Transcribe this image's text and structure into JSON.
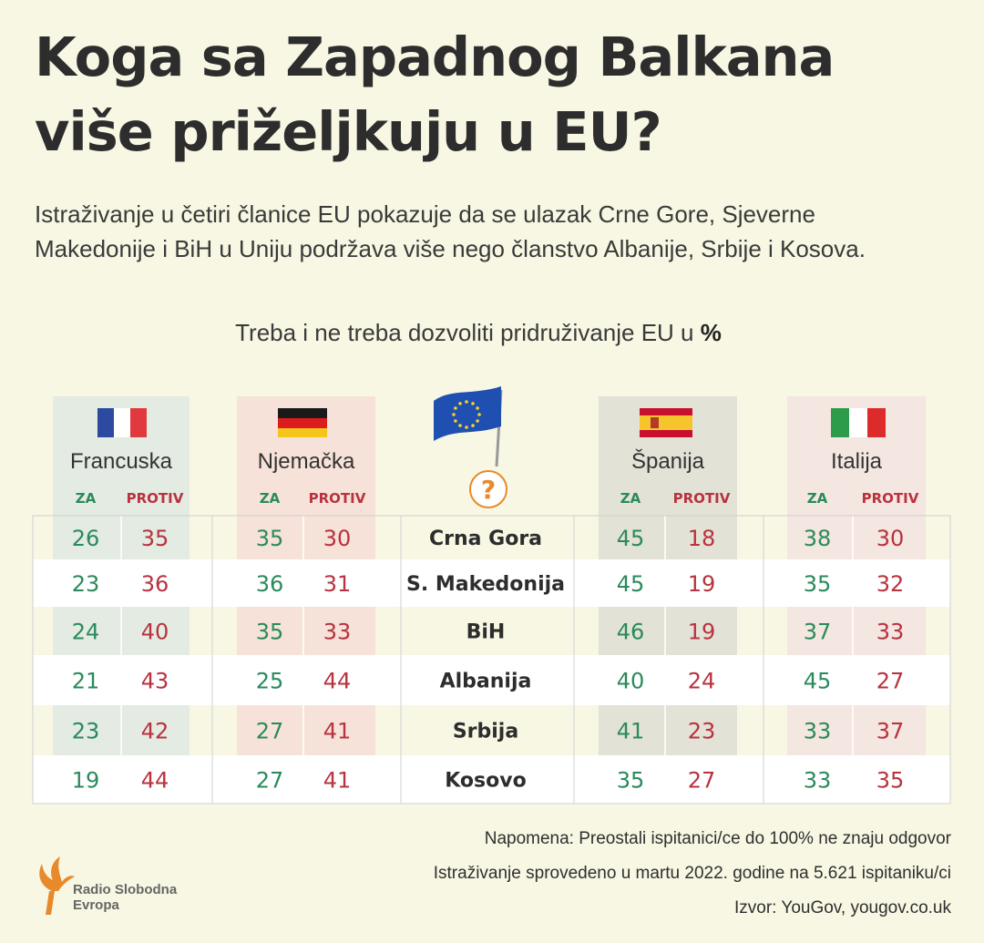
{
  "title": {
    "line1": "Koga sa Zapadnog Balkana",
    "line2": "više priželjkuju u EU?"
  },
  "subtitle": {
    "line1": "Istraživanje u četiri članice EU pokazuje da se ulazak Crne Gore, Sjeverne",
    "line2": "Makedonije i BiH u Uniju podržava više nego članstvo Albanije, Srbije i Kosova."
  },
  "chart_title": {
    "text": "Treba i ne treba dozvoliti pridruživanje EU u ",
    "unit": "%"
  },
  "center_icon": {
    "name": "eu-flag-icon",
    "question_mark": "?"
  },
  "colors": {
    "za": "#2a8a5c",
    "protiv": "#b8323f",
    "france_band": "#e3ebe2",
    "germany_band": "#f6e2d8",
    "spain_band": "#e3e2d6",
    "italy_band": "#f4e6e0"
  },
  "chart_data": {
    "type": "table",
    "title": "Treba i ne treba dozvoliti pridruživanje EU u %",
    "column_labels": {
      "za": "ZA",
      "protiv": "PROTIV"
    },
    "rows": [
      "Crna Gora",
      "S. Makedonija",
      "BiH",
      "Albanija",
      "Srbija",
      "Kosovo"
    ],
    "countries": [
      {
        "name": "Francuska",
        "flag": "france-flag-icon",
        "za": [
          26,
          23,
          24,
          21,
          23,
          19
        ],
        "protiv": [
          35,
          36,
          40,
          43,
          42,
          44
        ]
      },
      {
        "name": "Njemačka",
        "flag": "germany-flag-icon",
        "za": [
          35,
          36,
          35,
          25,
          27,
          27
        ],
        "protiv": [
          30,
          31,
          33,
          44,
          41,
          41
        ]
      },
      {
        "name": "Španija",
        "flag": "spain-flag-icon",
        "za": [
          45,
          45,
          46,
          40,
          41,
          35
        ],
        "protiv": [
          18,
          19,
          19,
          24,
          23,
          27
        ]
      },
      {
        "name": "Italija",
        "flag": "italy-flag-icon",
        "za": [
          38,
          35,
          37,
          45,
          33,
          33
        ],
        "protiv": [
          30,
          32,
          33,
          27,
          37,
          35
        ]
      }
    ]
  },
  "notes": {
    "note": "Napomena: Preostali ispitanici/ce do 100% ne znaju odgovor",
    "survey": "Istraživanje sprovedeno u martu 2022. godine na 5.621 ispitaniku/ci",
    "source": "Izvor: YouGov, yougov.co.uk"
  },
  "logo": {
    "line1": "Radio Slobodna",
    "line2": "Evropa"
  }
}
